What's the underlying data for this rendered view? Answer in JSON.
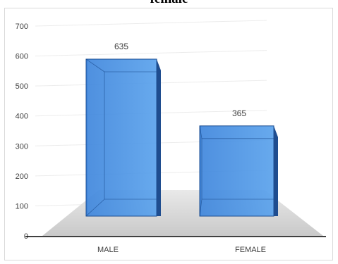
{
  "title_fragment": "female",
  "chart_data": {
    "type": "bar",
    "categories": [
      "MALE",
      "FEMALE"
    ],
    "values": [
      635,
      365
    ],
    "data_labels": [
      "635",
      "365"
    ],
    "yticks": [
      "0",
      "100",
      "200",
      "300",
      "400",
      "500",
      "600",
      "700"
    ],
    "ylim": [
      0,
      700
    ],
    "grid": true,
    "style": "3d",
    "bar_color": "#4a90e2"
  }
}
